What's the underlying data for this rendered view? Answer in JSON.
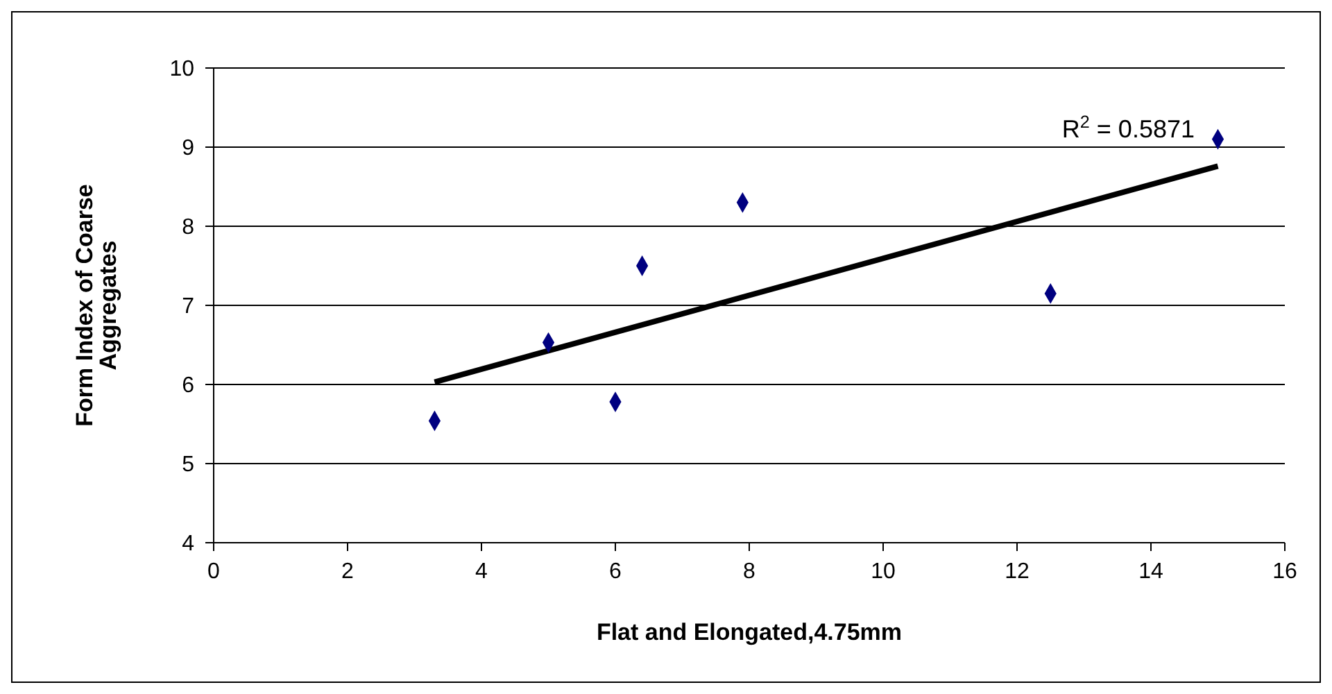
{
  "chart_data": {
    "type": "scatter",
    "xlabel": "Flat and Elongated,4.75mm",
    "ylabel": "Form Index of Coarse Aggregates",
    "series": [
      {
        "color": "#000080",
        "x": [
          3.3,
          5.0,
          6.0,
          6.4,
          7.9,
          12.5,
          15.0
        ],
        "values": [
          5.54,
          6.53,
          5.78,
          7.5,
          8.3,
          7.15,
          9.1
        ],
        "marker": "diamond"
      },
      {
        "type": "line",
        "color": "#000000",
        "x": [
          3.3,
          15.0
        ],
        "values": [
          6.03,
          8.76
        ],
        "marker": "none",
        "line_style": "solid"
      }
    ],
    "annotations": [
      "R$^{2}$ = 0.5871"
    ],
    "xlim": [
      0,
      16
    ],
    "xticks": [
      0,
      2,
      4,
      6,
      8,
      10,
      12,
      14,
      16
    ],
    "ylim": [
      4,
      10
    ],
    "yticks": [
      4,
      5,
      6,
      7,
      8,
      9,
      10
    ],
    "grid": "y"
  }
}
